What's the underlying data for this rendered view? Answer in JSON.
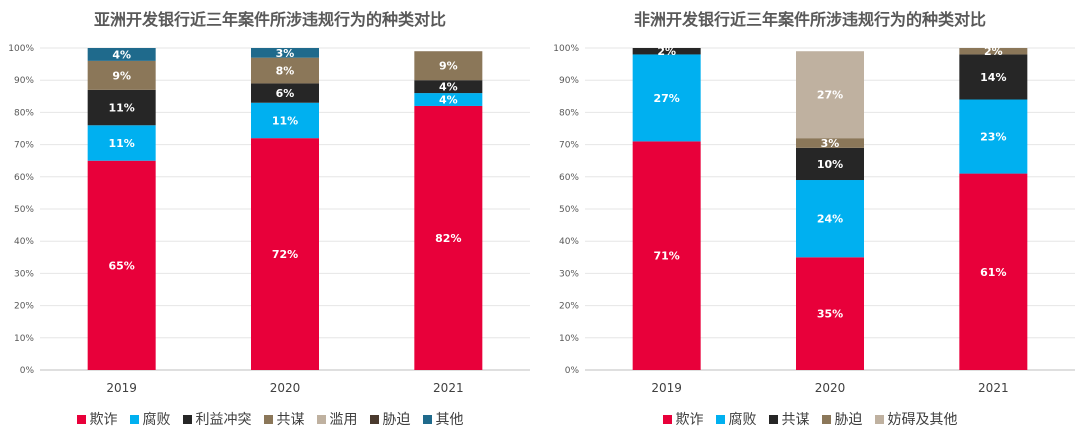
{
  "chart_data": [
    {
      "type": "bar",
      "stacked": true,
      "title": "亚洲开发银行近三年案件所涉违规行为的种类对比",
      "categories": [
        "2019",
        "2020",
        "2021"
      ],
      "ylim": [
        0,
        100
      ],
      "yticks": [
        "0%",
        "10%",
        "20%",
        "30%",
        "40%",
        "50%",
        "60%",
        "70%",
        "80%",
        "90%",
        "100%"
      ],
      "grid": true,
      "legend_position": "bottom",
      "series": [
        {
          "name": "欺诈",
          "color": "#E8003A",
          "values": [
            65,
            72,
            82
          ],
          "labels": [
            "65%",
            "72%",
            "82%"
          ]
        },
        {
          "name": "腐败",
          "color": "#00B0F0",
          "values": [
            11,
            11,
            4
          ],
          "labels": [
            "11%",
            "11%",
            "4%"
          ]
        },
        {
          "name": "利益冲突",
          "color": "#262626",
          "values": [
            11,
            6,
            4
          ],
          "labels": [
            "11%",
            "6%",
            "4%"
          ]
        },
        {
          "name": "共谋",
          "color": "#8B7759",
          "values": [
            9,
            8,
            9
          ],
          "labels": [
            "9%",
            "8%",
            "9%"
          ]
        },
        {
          "name": "滥用",
          "color": "#BFB1A0",
          "values": [
            0,
            0,
            0
          ],
          "labels": [
            "",
            "",
            ""
          ]
        },
        {
          "name": "胁迫",
          "color": "#4A3A2E",
          "values": [
            0,
            0,
            0
          ],
          "labels": [
            "",
            "",
            ""
          ]
        },
        {
          "name": "其他",
          "color": "#1F6A8C",
          "values": [
            4,
            3,
            0
          ],
          "labels": [
            "4%",
            "3%",
            ""
          ]
        }
      ]
    },
    {
      "type": "bar",
      "stacked": true,
      "title": "非洲开发银行近三年案件所涉违规行为的种类对比",
      "categories": [
        "2019",
        "2020",
        "2021"
      ],
      "ylim": [
        0,
        100
      ],
      "yticks": [
        "0%",
        "10%",
        "20%",
        "30%",
        "40%",
        "50%",
        "60%",
        "70%",
        "80%",
        "90%",
        "100%"
      ],
      "grid": true,
      "legend_position": "bottom",
      "series": [
        {
          "name": "欺诈",
          "color": "#E8003A",
          "values": [
            71,
            35,
            61
          ],
          "labels": [
            "71%",
            "35%",
            "61%"
          ]
        },
        {
          "name": "腐败",
          "color": "#00B0F0",
          "values": [
            27,
            24,
            23
          ],
          "labels": [
            "27%",
            "24%",
            "23%"
          ]
        },
        {
          "name": "共谋",
          "color": "#262626",
          "values": [
            2,
            10,
            14
          ],
          "labels": [
            "2%",
            "10%",
            "14%"
          ]
        },
        {
          "name": "胁迫",
          "color": "#8B7759",
          "values": [
            0,
            3,
            2
          ],
          "labels": [
            "",
            "3%",
            "2%"
          ]
        },
        {
          "name": "妨碍及其他",
          "color": "#BFB1A0",
          "values": [
            0,
            27,
            0
          ],
          "labels": [
            "",
            "27%",
            ""
          ]
        }
      ]
    }
  ]
}
